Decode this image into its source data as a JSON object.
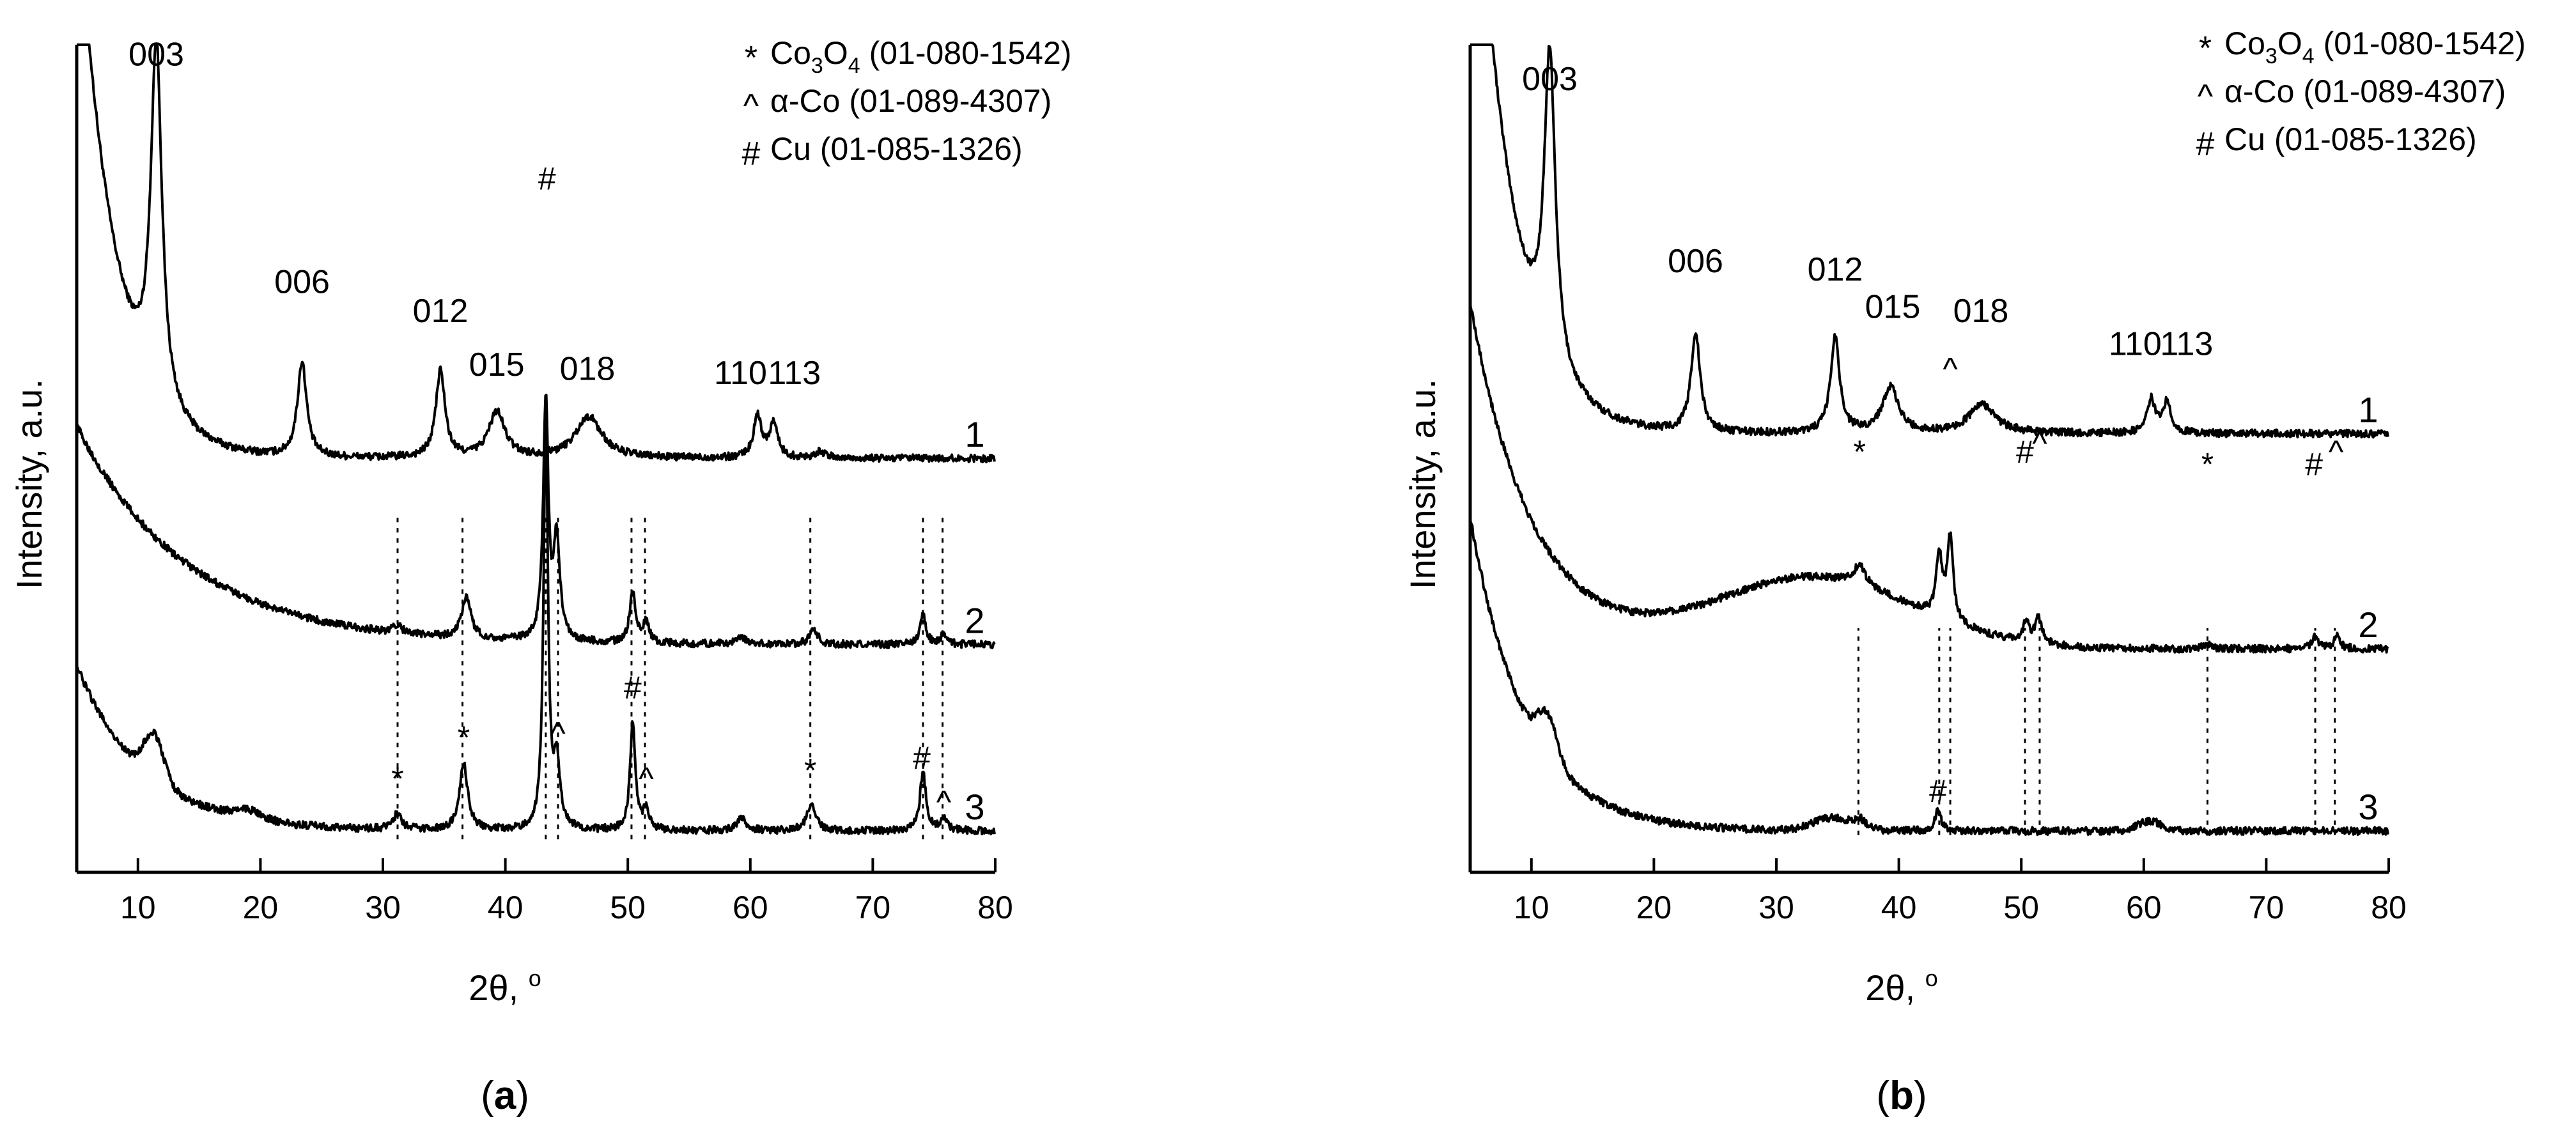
{
  "chart_data": [
    {
      "type": "line",
      "panel_label": "a",
      "xlabel": "2θ, ",
      "xlabel_unit": "o",
      "ylabel": "Intensity, a.u.",
      "xlim": [
        5,
        80
      ],
      "ylim": [
        0,
        10
      ],
      "x_ticks": [
        "10",
        "20",
        "30",
        "40",
        "50",
        "60",
        "70",
        "80"
      ],
      "x_tick_values": [
        10,
        20,
        30,
        40,
        50,
        60,
        70,
        80
      ],
      "legend": [
        {
          "symbol": "*",
          "prefix": "Co",
          "sub1": "3",
          "mid": "O",
          "sub2": "4",
          "ref": " (01-080-1542)"
        },
        {
          "symbol": "^",
          "prefix": "α-Co",
          "ref": " (01-089-4307)"
        },
        {
          "symbol": "#",
          "prefix": "Cu",
          "ref": " (01-085-1326)"
        }
      ],
      "series": [
        {
          "name": "1",
          "baseline": 5.0,
          "start": 7.0,
          "decay": 3.0,
          "broad": [],
          "peaks": [
            [
              11.5,
              4.3,
              0.55
            ],
            [
              23.4,
              1.15,
              0.45
            ],
            [
              34.7,
              1.05,
              0.45
            ],
            [
              39.3,
              0.55,
              0.8
            ],
            [
              46.8,
              0.5,
              1.3
            ],
            [
              60.6,
              0.5,
              0.4
            ],
            [
              61.9,
              0.42,
              0.4
            ],
            [
              65.7,
              0.08,
              0.5
            ]
          ],
          "hkl": [
            {
              "label": "003",
              "x": 11.5,
              "y": 9.75
            },
            {
              "label": "006",
              "x": 23.4,
              "y": 7.0
            },
            {
              "label": "012",
              "x": 34.7,
              "y": 6.65
            },
            {
              "label": "015",
              "x": 39.3,
              "y": 6.0
            },
            {
              "label": "018",
              "x": 46.7,
              "y": 5.95
            },
            {
              "label": "110",
              "x": 59.2,
              "y": 5.9
            },
            {
              "label": "113",
              "x": 63.6,
              "y": 5.9
            }
          ]
        },
        {
          "name": "2",
          "baseline": 2.75,
          "start": 2.65,
          "decay": 9.0,
          "broad": [],
          "peaks": [
            [
              31.2,
              0.1,
              0.4
            ],
            [
              36.8,
              0.5,
              0.45
            ],
            [
              43.3,
              2.9,
              0.25
            ],
            [
              44.2,
              1.2,
              0.3
            ],
            [
              50.4,
              0.6,
              0.3
            ],
            [
              51.5,
              0.25,
              0.3
            ],
            [
              59.3,
              0.08,
              0.5
            ],
            [
              65.2,
              0.18,
              0.4
            ],
            [
              74.1,
              0.35,
              0.3
            ],
            [
              75.8,
              0.12,
              0.3
            ]
          ],
          "markers": [
            {
              "symbol": "#",
              "x": 43.4,
              "y": 8.25
            }
          ]
        },
        {
          "name": "3",
          "baseline": 0.5,
          "start": 2.0,
          "decay": 5.5,
          "broad": [
            [
              11.3,
              0.55,
              0.8
            ],
            [
              19.0,
              0.1,
              1.2
            ]
          ],
          "peaks": [
            [
              31.2,
              0.2,
              0.4
            ],
            [
              36.6,
              0.8,
              0.4
            ],
            [
              43.3,
              4.9,
              0.22
            ],
            [
              44.2,
              0.8,
              0.3
            ],
            [
              50.4,
              1.3,
              0.25
            ],
            [
              51.5,
              0.25,
              0.3
            ],
            [
              59.3,
              0.15,
              0.5
            ],
            [
              65.0,
              0.35,
              0.4
            ],
            [
              74.1,
              0.7,
              0.3
            ],
            [
              75.8,
              0.15,
              0.3
            ]
          ],
          "markers": [
            {
              "symbol": "*",
              "x": 31.2,
              "y": 1.0
            },
            {
              "symbol": "*",
              "x": 36.6,
              "y": 1.5
            },
            {
              "symbol": "^",
              "x": 44.3,
              "y": 1.55
            },
            {
              "symbol": "#",
              "x": 50.4,
              "y": 2.1
            },
            {
              "symbol": "^",
              "x": 51.5,
              "y": 1.0
            },
            {
              "symbol": "*",
              "x": 64.9,
              "y": 1.1
            },
            {
              "symbol": "#",
              "x": 74.0,
              "y": 1.25
            },
            {
              "symbol": "^",
              "x": 75.8,
              "y": 0.72
            }
          ]
        }
      ],
      "ref_lines": [
        31.2,
        36.5,
        43.3,
        44.3,
        50.3,
        51.4,
        64.9,
        74.1,
        75.7
      ],
      "ref_lines_range": [
        0.4,
        4.3
      ]
    },
    {
      "type": "line",
      "panel_label": "b",
      "xlabel": "2θ, ",
      "xlabel_unit": "o",
      "ylabel": "Intensity, a.u.",
      "xlim": [
        5,
        80
      ],
      "ylim": [
        0,
        10
      ],
      "x_ticks": [
        "10",
        "20",
        "30",
        "40",
        "50",
        "60",
        "70",
        "80"
      ],
      "x_tick_values": [
        10,
        20,
        30,
        40,
        50,
        60,
        70,
        80
      ],
      "legend": [
        {
          "symbol": "*",
          "prefix": "Co",
          "sub1": "3",
          "mid": "O",
          "sub2": "4",
          "ref": " (01-080-1542)"
        },
        {
          "symbol": "^",
          "prefix": "α-Co",
          "ref": " (01-089-4307)"
        },
        {
          "symbol": "#",
          "prefix": "Cu",
          "ref": " (01-085-1326)"
        }
      ],
      "series": [
        {
          "name": "1",
          "baseline": 5.3,
          "start": 8.6,
          "decay": 3.0,
          "broad": [],
          "peaks": [
            [
              11.5,
              3.7,
              0.55
            ],
            [
              23.4,
              1.2,
              0.45
            ],
            [
              34.8,
              1.15,
              0.45
            ],
            [
              39.3,
              0.55,
              0.8
            ],
            [
              46.8,
              0.35,
              1.3
            ],
            [
              60.6,
              0.4,
              0.4
            ],
            [
              61.9,
              0.38,
              0.4
            ]
          ],
          "hkl": [
            {
              "label": "003",
              "x": 11.5,
              "y": 9.45
            },
            {
              "label": "006",
              "x": 23.4,
              "y": 7.25
            },
            {
              "label": "012",
              "x": 34.8,
              "y": 7.15
            },
            {
              "label": "015",
              "x": 39.5,
              "y": 6.7
            },
            {
              "label": "018",
              "x": 46.7,
              "y": 6.65
            },
            {
              "label": "110",
              "x": 59.3,
              "y": 6.25
            },
            {
              "label": "113",
              "x": 63.5,
              "y": 6.25
            }
          ]
        },
        {
          "name": "2",
          "baseline": 2.7,
          "start": 4.2,
          "decay": 5.0,
          "broad": [
            [
              33.0,
              0.85,
              8.0
            ]
          ],
          "peaks": [
            [
              36.8,
              0.25,
              0.6
            ],
            [
              43.3,
              0.75,
              0.3
            ],
            [
              44.2,
              1.0,
              0.3
            ],
            [
              50.4,
              0.25,
              0.3
            ],
            [
              51.4,
              0.3,
              0.35
            ],
            [
              65.2,
              0.05,
              0.4
            ],
            [
              74.0,
              0.15,
              0.3
            ],
            [
              75.8,
              0.15,
              0.3
            ]
          ],
          "markers": [
            {
              "symbol": "*",
              "x": 36.8,
              "y": 4.95
            },
            {
              "symbol": "^",
              "x": 44.2,
              "y": 5.95
            },
            {
              "symbol": "#",
              "x": 50.3,
              "y": 4.95
            },
            {
              "symbol": "^",
              "x": 51.5,
              "y": 5.05
            },
            {
              "symbol": "*",
              "x": 65.2,
              "y": 4.8
            },
            {
              "symbol": "#",
              "x": 73.9,
              "y": 4.8
            },
            {
              "symbol": "^",
              "x": 75.7,
              "y": 4.95
            }
          ]
        },
        {
          "name": "3",
          "baseline": 0.5,
          "start": 3.8,
          "decay": 4.5,
          "broad": [
            [
              11.3,
              0.5,
              0.8
            ],
            [
              34.5,
              0.15,
              1.5
            ],
            [
              60.5,
              0.12,
              1.0
            ]
          ],
          "peaks": [
            [
              36.8,
              0.12,
              0.5
            ],
            [
              43.2,
              0.25,
              0.3
            ]
          ],
          "markers": [
            {
              "symbol": "#",
              "x": 43.2,
              "y": 0.85
            }
          ]
        }
      ],
      "ref_lines": [
        36.7,
        43.3,
        44.2,
        50.3,
        51.5,
        65.2,
        74.0,
        75.6
      ],
      "ref_lines_range": [
        0.45,
        2.95
      ]
    }
  ]
}
